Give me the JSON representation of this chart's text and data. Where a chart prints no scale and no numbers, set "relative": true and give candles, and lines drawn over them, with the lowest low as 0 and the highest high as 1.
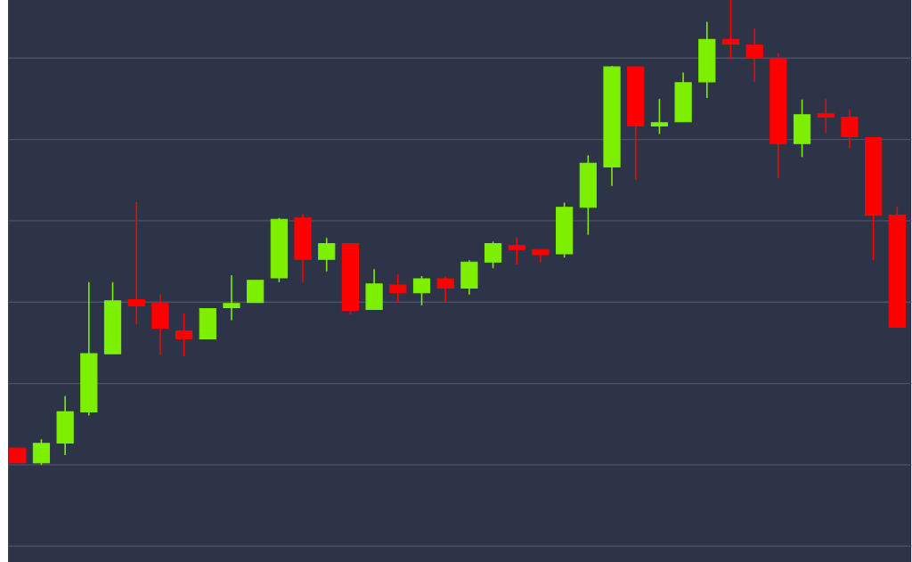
{
  "chart_data": {
    "type": "candlestick",
    "relative": true,
    "grid": "y",
    "categories": [
      null,
      null,
      null,
      null,
      null,
      null,
      null,
      null,
      null,
      null,
      null,
      null,
      null,
      null,
      null,
      null,
      null,
      null,
      null,
      null,
      null,
      null,
      null,
      null,
      null,
      null,
      null,
      null,
      null,
      null,
      null,
      null,
      null,
      null,
      null,
      null,
      null,
      null
    ],
    "ohlc": [
      [
        0.036,
        0.036,
        0.004,
        0.004
      ],
      [
        0.004,
        0.055,
        0,
        0.046
      ],
      [
        0.047,
        0.148,
        0.021,
        0.114
      ],
      [
        0.114,
        0.393,
        0.106,
        0.239
      ],
      [
        0.239,
        0.393,
        0.239,
        0.353
      ],
      [
        0.355,
        0.565,
        0.302,
        0.342
      ],
      [
        0.347,
        0.366,
        0.237,
        0.294
      ],
      [
        0.288,
        0.326,
        0.233,
        0.271
      ],
      [
        0.271,
        0.336,
        0.271,
        0.336
      ],
      [
        0.338,
        0.408,
        0.311,
        0.347
      ],
      [
        0.349,
        0.397,
        0.349,
        0.397
      ],
      [
        0.402,
        0.531,
        0.393,
        0.528
      ],
      [
        0.531,
        0.539,
        0.393,
        0.442
      ],
      [
        0.442,
        0.488,
        0.416,
        0.476
      ],
      [
        0.476,
        0.476,
        0.324,
        0.332
      ],
      [
        0.334,
        0.421,
        0.334,
        0.389
      ],
      [
        0.387,
        0.41,
        0.349,
        0.37
      ],
      [
        0.37,
        0.406,
        0.343,
        0.4
      ],
      [
        0.4,
        0.406,
        0.349,
        0.38
      ],
      [
        0.38,
        0.44,
        0.366,
        0.436
      ],
      [
        0.436,
        0.48,
        0.423,
        0.476
      ],
      [
        0.472,
        0.488,
        0.431,
        0.463
      ],
      [
        0.463,
        0.463,
        0.436,
        0.452
      ],
      [
        0.454,
        0.564,
        0.446,
        0.554
      ],
      [
        0.554,
        0.666,
        0.495,
        0.649
      ],
      [
        0.641,
        0.858,
        0.6,
        0.856
      ],
      [
        0.856,
        0.856,
        0.613,
        0.729
      ],
      [
        0.729,
        0.787,
        0.712,
        0.736
      ],
      [
        0.738,
        0.844,
        0.738,
        0.822
      ],
      [
        0.824,
        0.953,
        0.789,
        0.915
      ],
      [
        0.915,
        1,
        0.873,
        0.905
      ],
      [
        0.903,
        0.939,
        0.824,
        0.875
      ],
      [
        0.873,
        0.886,
        0.617,
        0.691
      ],
      [
        0.691,
        0.786,
        0.662,
        0.753
      ],
      [
        0.755,
        0.787,
        0.713,
        0.748
      ],
      [
        0.748,
        0.765,
        0.681,
        0.706
      ],
      [
        0.704,
        0.704,
        0.44,
        0.537
      ],
      [
        0.537,
        0.556,
        0.296,
        0.296
      ]
    ],
    "colors": [
      "#ff0000",
      "#7cf000",
      "#7cf000",
      "#7cf000",
      "#7cf000",
      "#ff0000",
      "#ff0000",
      "#ff0000",
      "#7cf000",
      "#7cf000",
      "#7cf000",
      "#7cf000",
      "#ff0000",
      "#7cf000",
      "#ff0000",
      "#7cf000",
      "#ff0000",
      "#7cf000",
      "#ff0000",
      "#7cf000",
      "#7cf000",
      "#ff0000",
      "#ff0000",
      "#7cf000",
      "#7cf000",
      "#7cf000",
      "#ff0000",
      "#7cf000",
      "#7cf000",
      "#7cf000",
      "#ff0000",
      "#ff0000",
      "#ff0000",
      "#7cf000",
      "#ff0000",
      "#ff0000",
      "#ff0000",
      "#ff0000"
    ]
  }
}
